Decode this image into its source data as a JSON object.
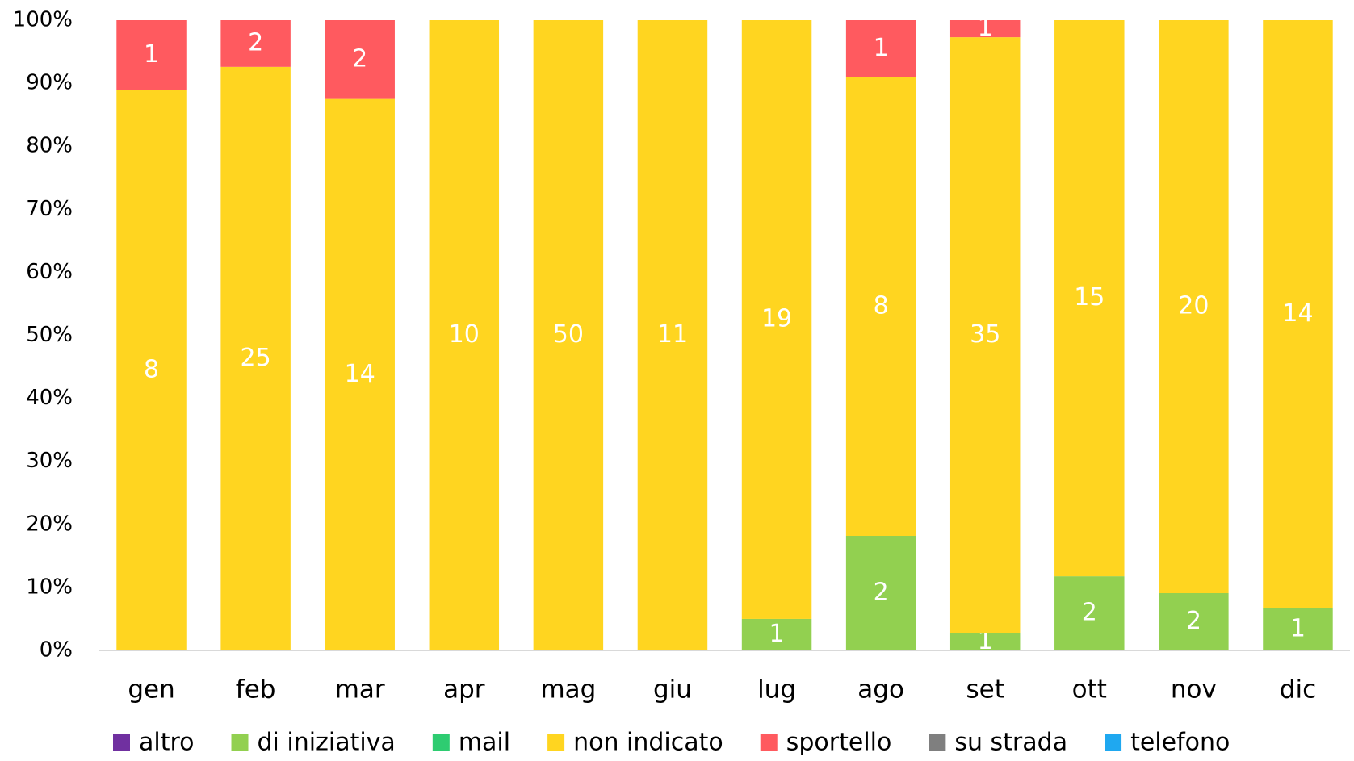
{
  "chart_data": {
    "type": "bar",
    "stacked": "percent",
    "categories": [
      "gen",
      "feb",
      "mar",
      "apr",
      "mag",
      "giu",
      "lug",
      "ago",
      "set",
      "ott",
      "nov",
      "dic"
    ],
    "series": [
      {
        "name": "altro",
        "color": "#7030a0",
        "values": [
          null,
          null,
          null,
          null,
          null,
          null,
          null,
          null,
          null,
          null,
          null,
          null
        ]
      },
      {
        "name": "di iniziativa",
        "color": "#92d050",
        "values": [
          null,
          null,
          null,
          null,
          null,
          null,
          1,
          2,
          1,
          2,
          2,
          1
        ]
      },
      {
        "name": "mail",
        "color": "#2ecc71",
        "values": [
          null,
          null,
          null,
          null,
          null,
          null,
          null,
          null,
          null,
          null,
          null,
          null
        ]
      },
      {
        "name": "non indicato",
        "color": "#ffd520",
        "values": [
          8,
          25,
          14,
          10,
          50,
          11,
          19,
          8,
          35,
          15,
          20,
          14
        ]
      },
      {
        "name": "sportello",
        "color": "#ff5a5f",
        "values": [
          1,
          2,
          2,
          null,
          null,
          null,
          null,
          1,
          1,
          null,
          null,
          null
        ]
      },
      {
        "name": "su strada",
        "color": "#7f7f7f",
        "values": [
          null,
          null,
          null,
          null,
          null,
          null,
          null,
          null,
          null,
          null,
          null,
          null
        ]
      },
      {
        "name": "telefono",
        "color": "#1fa8f0",
        "values": [
          null,
          null,
          null,
          null,
          null,
          null,
          null,
          null,
          null,
          null,
          null,
          null
        ]
      }
    ],
    "ylim": [
      0,
      100
    ],
    "yticks": [
      {
        "value": 0,
        "label": "0%"
      },
      {
        "value": 10,
        "label": "10%"
      },
      {
        "value": 20,
        "label": "20%"
      },
      {
        "value": 30,
        "label": "30%"
      },
      {
        "value": 40,
        "label": "40%"
      },
      {
        "value": 50,
        "label": "50%"
      },
      {
        "value": 60,
        "label": "60%"
      },
      {
        "value": 70,
        "label": "70%"
      },
      {
        "value": 80,
        "label": "80%"
      },
      {
        "value": 90,
        "label": "90%"
      },
      {
        "value": 100,
        "label": "100%"
      }
    ],
    "legend": "bottom"
  }
}
